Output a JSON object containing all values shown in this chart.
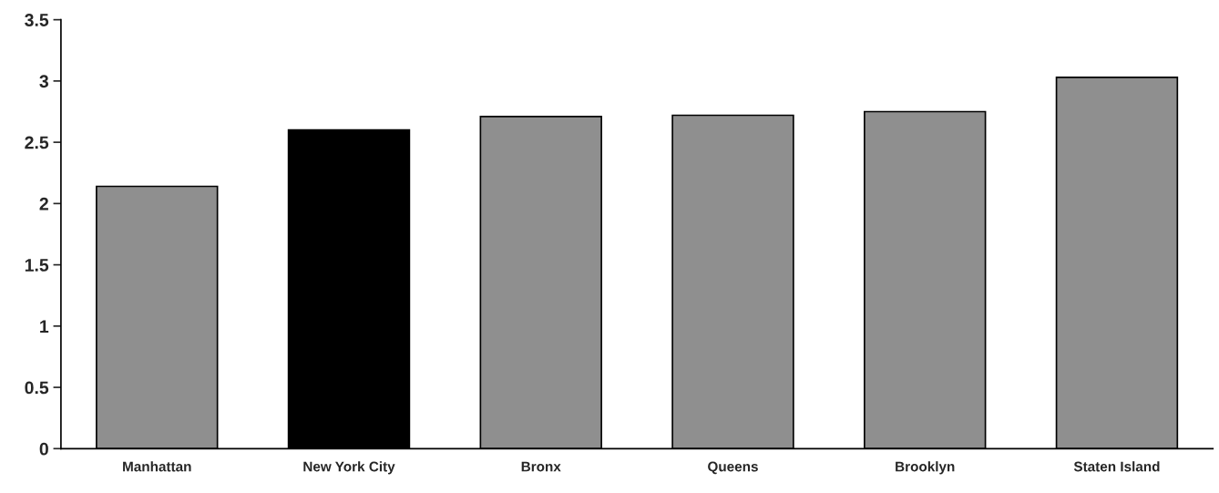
{
  "chart_data": {
    "type": "bar",
    "categories": [
      "Manhattan",
      "New York City",
      "Bronx",
      "Queens",
      "Brooklyn",
      "Staten Island"
    ],
    "values": [
      2.14,
      2.6,
      2.71,
      2.72,
      2.75,
      3.03
    ],
    "colors": [
      "#8f8f8f",
      "#000000",
      "#8f8f8f",
      "#8f8f8f",
      "#8f8f8f",
      "#8f8f8f"
    ],
    "ylim": [
      0,
      3.5
    ],
    "yticks": [
      0,
      0.5,
      1,
      1.5,
      2,
      2.5,
      3,
      3.5
    ],
    "grid": false,
    "legend": false
  }
}
